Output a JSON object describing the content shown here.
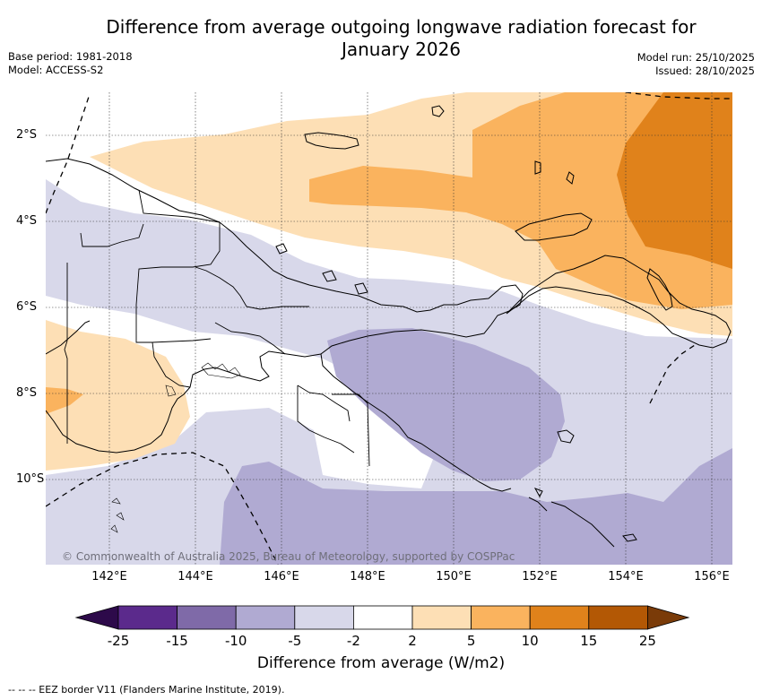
{
  "title": "Difference from average outgoing longwave radiation forecast for January 2026",
  "title_line1": "Difference from average outgoing longwave radiation forecast for",
  "title_line2": "January 2026",
  "base_period": "Base period: 1981-2018",
  "model": "Model: ACCESS-S2",
  "model_run": "Model run: 25/10/2025",
  "issued": "Issued: 28/10/2025",
  "attribution": "© Commonwealth of Australia 2025, Bureau of Meteorology, supported by COSPPac",
  "footnote": "-- -- -- EEZ border V11 (Flanders Marine Institute, 2019).",
  "longitude_labels": [
    "142°E",
    "144°E",
    "146°E",
    "148°E",
    "150°E",
    "152°E",
    "154°E",
    "156°E"
  ],
  "latitude_labels": [
    "2°S",
    "4°S",
    "6°S",
    "8°S",
    "10°S"
  ],
  "colorbar": {
    "title": "Difference from average (W/m2)",
    "labels": [
      "-25",
      "-15",
      "-10",
      "-5",
      "-2",
      "2",
      "5",
      "10",
      "15",
      "25"
    ],
    "colors": {
      "below_-25": "#2d0a4a",
      "-25_-15": "#5b2a8c",
      "-15_-10": "#7f6aa8",
      "-10_-5": "#b0aad2",
      "-5_-2": "#d8d8ea",
      "-2_2": "#ffffff",
      "2_5": "#fddfb5",
      "5_10": "#fab35e",
      "10_15": "#e0821b",
      "15_25": "#b35805",
      "above_25": "#7a3b08"
    }
  }
}
